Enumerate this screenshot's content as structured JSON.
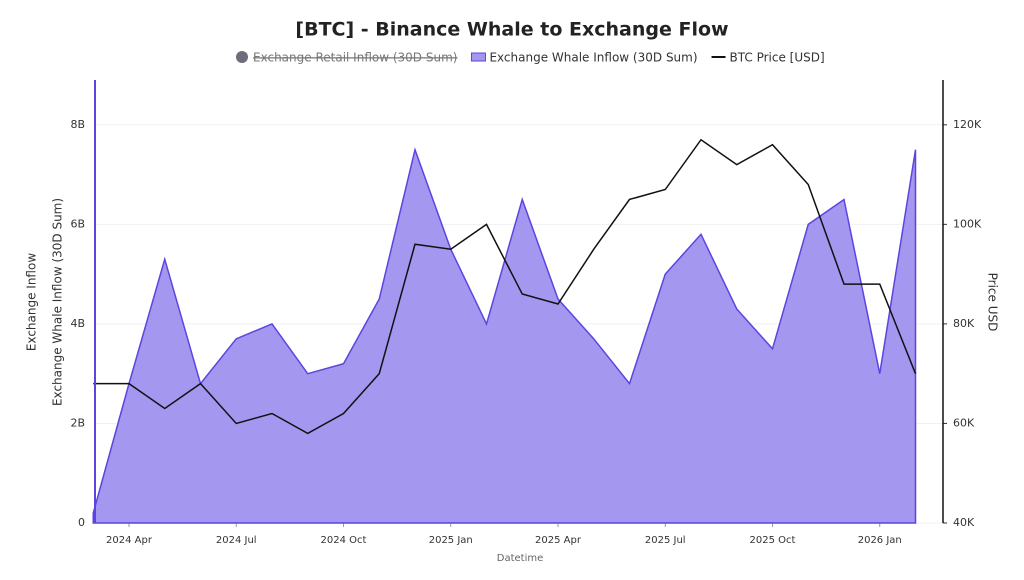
{
  "chart_data": {
    "type": "area-line",
    "title": "[BTC] - Binance Whale to Exchange Flow",
    "x_label": "Datetime",
    "y_label": [
      "Exchange Inflow",
      "Exchange Whale Inflow (30D Sum)"
    ],
    "y2_label": "Price USD",
    "x": [
      "2024-03",
      "2024-04",
      "2024-05",
      "2024-06",
      "2024-07",
      "2024-08",
      "2024-09",
      "2024-10",
      "2024-11",
      "2024-12",
      "2025-01",
      "2025-02",
      "2025-03",
      "2025-04",
      "2025-05",
      "2025-06",
      "2025-07",
      "2025-08",
      "2025-09",
      "2025-10",
      "2025-11",
      "2025-12",
      "2026-01",
      "2026-02"
    ],
    "xticks": [
      {
        "value": "2024-04",
        "label": "2024 Apr"
      },
      {
        "value": "2024-07",
        "label": "2024 Jul"
      },
      {
        "value": "2024-10",
        "label": "2024 Oct"
      },
      {
        "value": "2025-01",
        "label": "2025 Jan"
      },
      {
        "value": "2025-04",
        "label": "2025 Apr"
      },
      {
        "value": "2025-07",
        "label": "2025 Jul"
      },
      {
        "value": "2025-10",
        "label": "2025 Oct"
      },
      {
        "value": "2026-01",
        "label": "2026 Jan"
      }
    ],
    "ylim": [
      0,
      8.9
    ],
    "yticks": [
      0,
      {
        "value": 2,
        "label": "2B"
      },
      {
        "value": 4,
        "label": "4B"
      },
      {
        "value": 6,
        "label": "6B"
      },
      {
        "value": 8,
        "label": "8B"
      }
    ],
    "y2lim": [
      40000,
      129000
    ],
    "y2ticks": [
      {
        "value": 40000,
        "label": "40K"
      },
      {
        "value": 60000,
        "label": "60K"
      },
      {
        "value": 80000,
        "label": "80K"
      },
      {
        "value": 100000,
        "label": "100K"
      },
      {
        "value": 120000,
        "label": "120K"
      }
    ],
    "series": [
      {
        "name": "Exchange Retail Inflow (30D Sum)",
        "color": "#6e6e7a",
        "hidden": true
      },
      {
        "name": "Exchange Whale Inflow (30D Sum)",
        "color": "#5b45e0",
        "values": [
          0.2,
          2.8,
          5.3,
          2.8,
          3.7,
          4.0,
          3.0,
          3.2,
          4.5,
          7.5,
          5.5,
          4.0,
          6.5,
          4.5,
          3.7,
          2.8,
          5.0,
          5.8,
          4.3,
          3.5,
          6.0,
          6.5,
          3.0,
          7.5
        ]
      },
      {
        "name": "BTC Price [USD]",
        "color": "#111111",
        "axis": "y2",
        "values": [
          68000,
          68000,
          63000,
          68000,
          60000,
          62000,
          58000,
          62000,
          70000,
          96000,
          95000,
          100000,
          86000,
          84000,
          95000,
          105000,
          107000,
          117000,
          112000,
          116000,
          108000,
          88000,
          88000,
          70000
        ]
      }
    ]
  }
}
